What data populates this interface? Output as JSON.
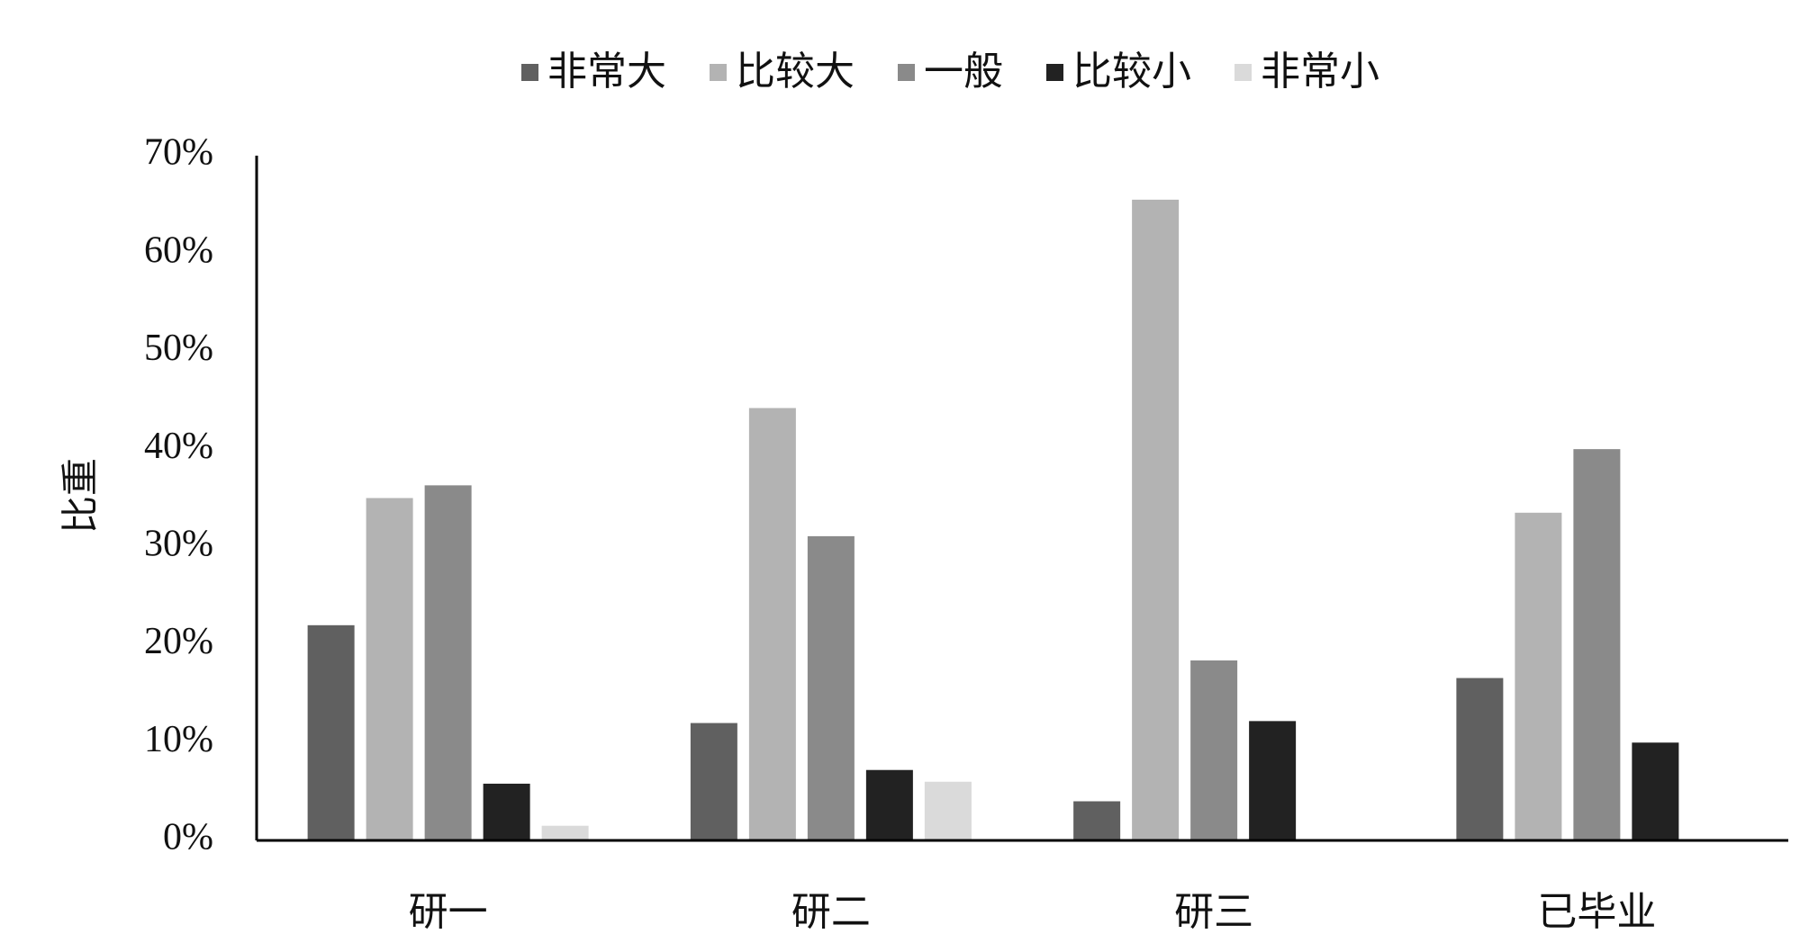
{
  "chart_data": {
    "type": "bar",
    "y_label": "比重",
    "categories": [
      "研一",
      "研二",
      "研三",
      "已毕业"
    ],
    "series": [
      {
        "name": "非常大",
        "color": "#606060",
        "values": [
          22,
          12,
          4,
          16.6
        ]
      },
      {
        "name": "比较大",
        "color": "#b3b3b3",
        "values": [
          35,
          44.2,
          65.5,
          33.5
        ]
      },
      {
        "name": "一般",
        "color": "#8a8a8a",
        "values": [
          36.3,
          31.1,
          18.4,
          40
        ]
      },
      {
        "name": "比较小",
        "color": "#222222",
        "values": [
          5.8,
          7.2,
          12.2,
          10
        ]
      },
      {
        "name": "非常小",
        "color": "#dadada",
        "values": [
          1.5,
          6,
          0,
          0
        ]
      }
    ],
    "ylim": [
      0,
      70
    ],
    "yticks": [
      {
        "value": 0,
        "label": "0%"
      },
      {
        "value": 10,
        "label": "10%"
      },
      {
        "value": 20,
        "label": "20%"
      },
      {
        "value": 30,
        "label": "30%"
      },
      {
        "value": 40,
        "label": "40%"
      },
      {
        "value": 50,
        "label": "50%"
      },
      {
        "value": 60,
        "label": "60%"
      },
      {
        "value": 70,
        "label": "70%"
      }
    ],
    "legend": "top"
  }
}
